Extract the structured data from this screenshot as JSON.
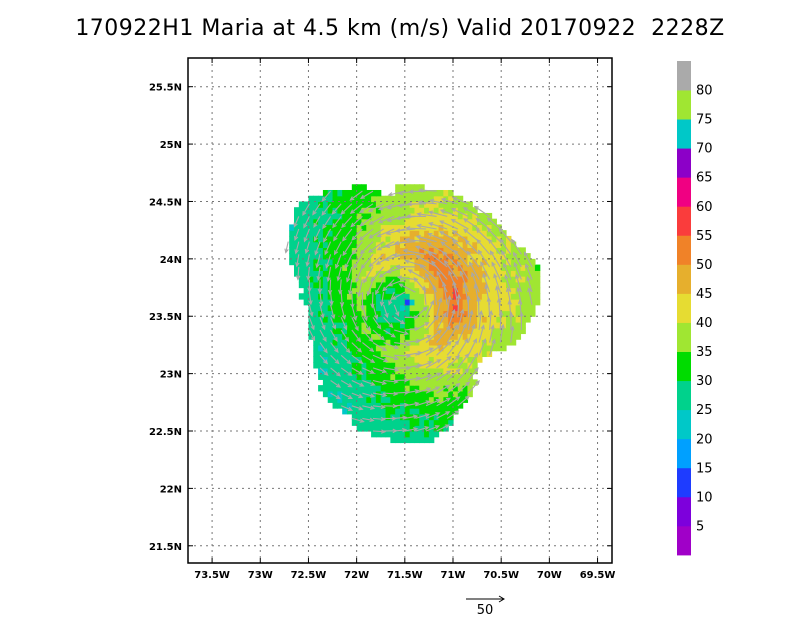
{
  "chart_data": {
    "type": "heatmap",
    "title": "170922H1 Maria at 4.5 km (m/s) Valid 20170922  2228Z",
    "x_axis": {
      "range": [
        -73.75,
        -69.35
      ],
      "ticks": [
        -73.5,
        -73,
        -72.5,
        -72,
        -71.5,
        -71,
        -70.5,
        -70,
        -69.5
      ],
      "tick_labels": [
        "73.5W",
        "73W",
        "72.5W",
        "72W",
        "71.5W",
        "71W",
        "70.5W",
        "70W",
        "69.5W"
      ]
    },
    "y_axis": {
      "range": [
        21.35,
        25.75
      ],
      "ticks": [
        21.5,
        22,
        22.5,
        23,
        23.5,
        24,
        24.5,
        25,
        25.5
      ],
      "tick_labels": [
        "21.5N",
        "22N",
        "22.5N",
        "23N",
        "23.5N",
        "24N",
        "24.5N",
        "25N",
        "25.5N"
      ]
    },
    "grid": true,
    "storm_center": {
      "lon": -71.47,
      "lat": 23.62
    },
    "wind_field": {
      "radius_of_max_wind_deg": 0.45,
      "max_speed_ms": 58,
      "eye_radius_deg": 0.06,
      "asymmetry_direction": "east-northeast"
    },
    "colorbar": {
      "labels": [
        "5",
        "10",
        "15",
        "20",
        "25",
        "30",
        "35",
        "40",
        "45",
        "50",
        "55",
        "60",
        "65",
        "70",
        "75",
        "80"
      ],
      "levels": [
        0,
        5,
        10,
        15,
        20,
        25,
        30,
        35,
        40,
        45,
        50,
        55,
        60,
        65,
        70,
        75,
        80,
        85
      ],
      "colors": [
        "#a000c8",
        "#7d00dc",
        "#1e3cff",
        "#00a0ff",
        "#00c8c8",
        "#00d28c",
        "#00dc00",
        "#a0e632",
        "#e6dc32",
        "#e6af2d",
        "#f08228",
        "#fa3c3c",
        "#f00082",
        "#8c00c8",
        "#00c8c8",
        "#a0e632",
        "#aaaaaa"
      ]
    },
    "reference_vector": {
      "label": "50",
      "speed_ms": 50
    },
    "vector_color": "#a8a8a8"
  }
}
